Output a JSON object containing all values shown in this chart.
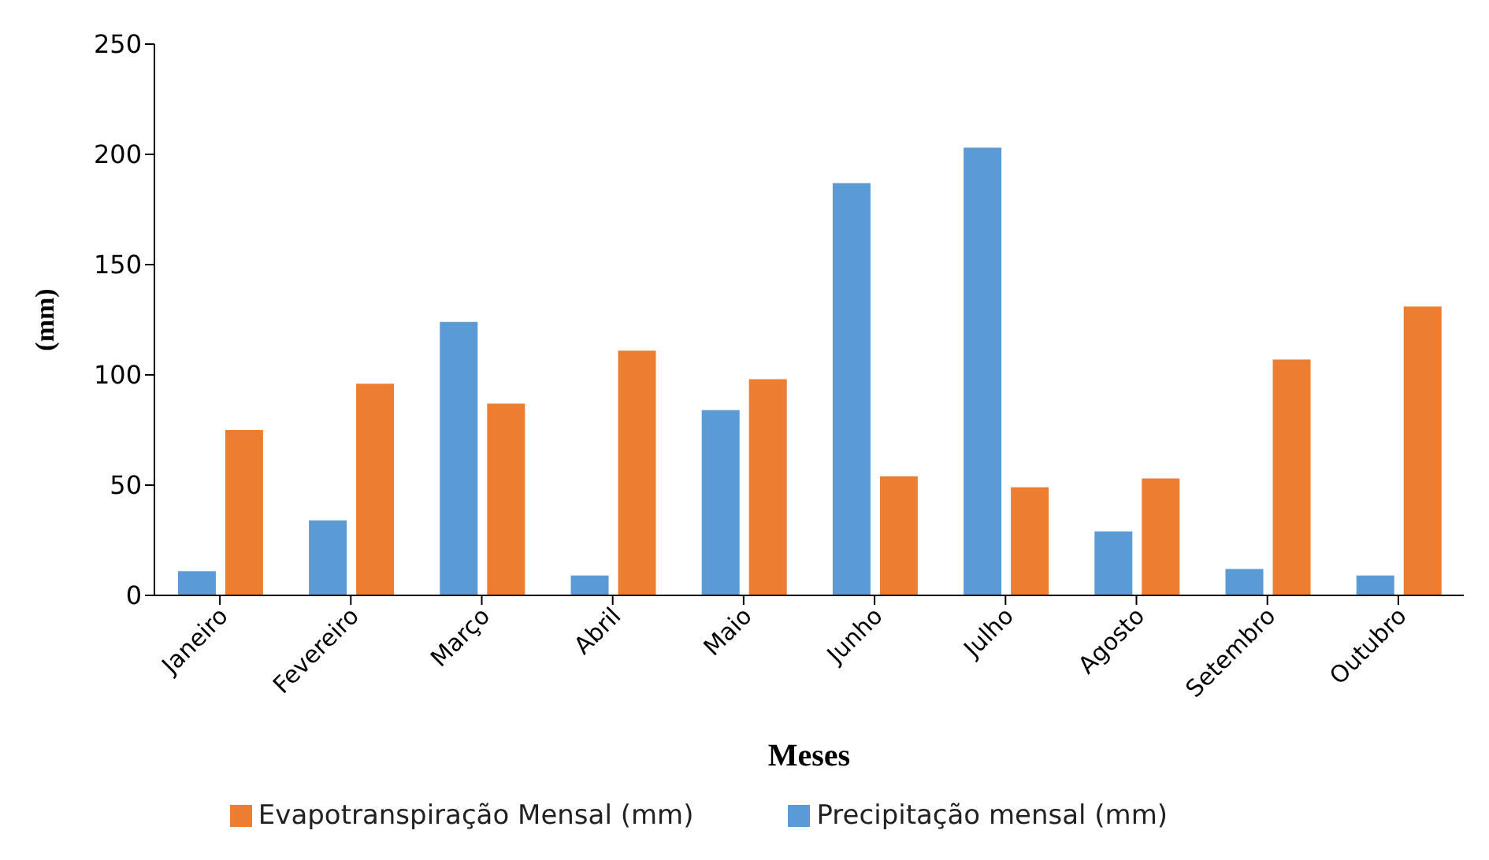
{
  "chart_data": {
    "type": "bar",
    "xlabel": "Meses",
    "ylabel": "(mm)",
    "categories": [
      "Janeiro",
      "Fevereiro",
      "Março",
      "Abril",
      "Maio",
      "Junho",
      "Julho",
      "Agosto",
      "Setembro",
      "Outubro"
    ],
    "series": [
      {
        "name": "Precipitação mensal (mm)",
        "color": "#5b9bd5",
        "values": [
          11,
          34,
          124,
          9,
          84,
          187,
          203,
          29,
          12,
          9
        ]
      },
      {
        "name": "Evapotranspiração Mensal (mm)",
        "color": "#ed7d31",
        "values": [
          75,
          96,
          87,
          111,
          98,
          54,
          49,
          53,
          107,
          131
        ]
      }
    ],
    "ylim": [
      0,
      250
    ],
    "yticks": [
      0,
      50,
      100,
      150,
      200,
      250
    ],
    "grid": false,
    "legend": "bottom"
  }
}
